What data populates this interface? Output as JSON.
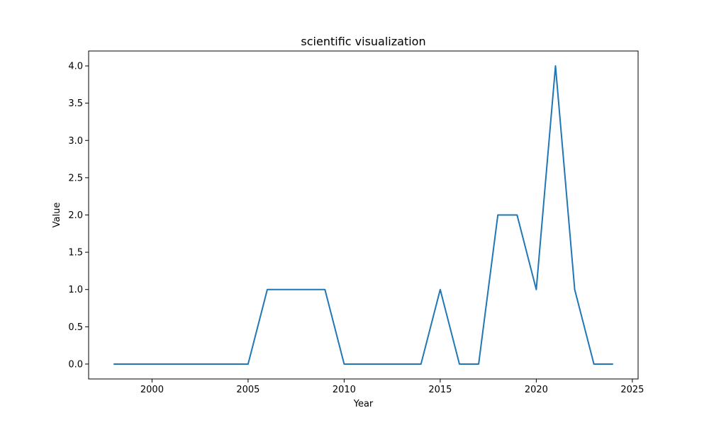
{
  "chart_data": {
    "type": "line",
    "title": "scientific visualization",
    "xlabel": "Year",
    "ylabel": "Value",
    "xlim": [
      1996.7,
      2025.3
    ],
    "ylim": [
      -0.2,
      4.2
    ],
    "grid": false,
    "x_ticks": [
      2000,
      2005,
      2010,
      2015,
      2020,
      2025
    ],
    "y_ticks": [
      0.0,
      0.5,
      1.0,
      1.5,
      2.0,
      2.5,
      3.0,
      3.5,
      4.0
    ],
    "x_tick_labels": [
      "2000",
      "2005",
      "2010",
      "2015",
      "2020",
      "2025"
    ],
    "y_tick_labels": [
      "0.0",
      "0.5",
      "1.0",
      "1.5",
      "2.0",
      "2.5",
      "3.0",
      "3.5",
      "4.0"
    ],
    "series": [
      {
        "color": "#1f77b4",
        "x": [
          1998,
          1999,
          2000,
          2001,
          2002,
          2003,
          2004,
          2005,
          2006,
          2007,
          2008,
          2009,
          2010,
          2011,
          2012,
          2013,
          2014,
          2015,
          2016,
          2017,
          2018,
          2019,
          2020,
          2021,
          2022,
          2023,
          2024
        ],
        "y": [
          0,
          0,
          0,
          0,
          0,
          0,
          0,
          0,
          1,
          1,
          1,
          1,
          0,
          0,
          0,
          0,
          0,
          1,
          0,
          0,
          2,
          2,
          1,
          4,
          1,
          0,
          0
        ]
      }
    ]
  }
}
